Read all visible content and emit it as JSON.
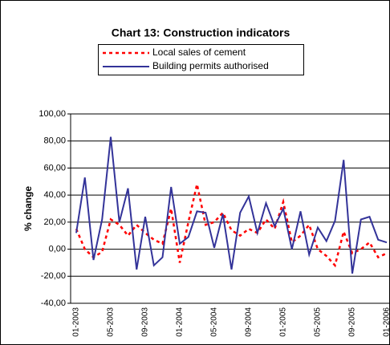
{
  "chart_data": {
    "type": "line",
    "title": "Chart 13:  Construction indicators",
    "ylabel": "% change",
    "categories": [
      "01-2003",
      null,
      null,
      null,
      "05-2003",
      null,
      null,
      null,
      "09-2003",
      null,
      null,
      null,
      "01-2004",
      null,
      null,
      null,
      "05-2004",
      null,
      null,
      null,
      "09-2004",
      null,
      null,
      null,
      "01-2005",
      null,
      null,
      null,
      "05-2005",
      null,
      null,
      null,
      "09-2005",
      null,
      null,
      null,
      "01-2006"
    ],
    "series": [
      {
        "name": "Local sales of cement",
        "color": "#ff0000",
        "dashed": true,
        "values": [
          15,
          0,
          -6,
          -2,
          22,
          18,
          10,
          18,
          12,
          7,
          4,
          30,
          -10,
          20,
          48,
          18,
          20,
          27,
          14,
          10,
          15,
          12,
          22,
          15,
          35,
          5,
          10,
          18,
          0,
          -5,
          -12,
          13,
          -3,
          0,
          5,
          -6,
          -3
        ]
      },
      {
        "name": "Building permits authorised",
        "color": "#333399",
        "dashed": false,
        "values": [
          12,
          53,
          -8,
          22,
          83,
          20,
          45,
          -15,
          24,
          -12,
          -6,
          46,
          4,
          9,
          28,
          27,
          1,
          26,
          -15,
          27,
          39,
          12,
          34,
          17,
          30,
          0,
          28,
          -4,
          16,
          6,
          21,
          66,
          -18,
          22,
          24,
          7,
          5
        ]
      }
    ],
    "ylim": [
      -40,
      100
    ],
    "yticks": [
      {
        "value": -40,
        "label": "-40,00"
      },
      {
        "value": -20,
        "label": "-20,00"
      },
      {
        "value": 0,
        "label": "0,00"
      },
      {
        "value": 20,
        "label": "20,00"
      },
      {
        "value": 40,
        "label": "40,00"
      },
      {
        "value": 60,
        "label": "60,00"
      },
      {
        "value": 80,
        "label": "80,00"
      },
      {
        "value": 100,
        "label": "100,00"
      }
    ],
    "grid": true
  }
}
